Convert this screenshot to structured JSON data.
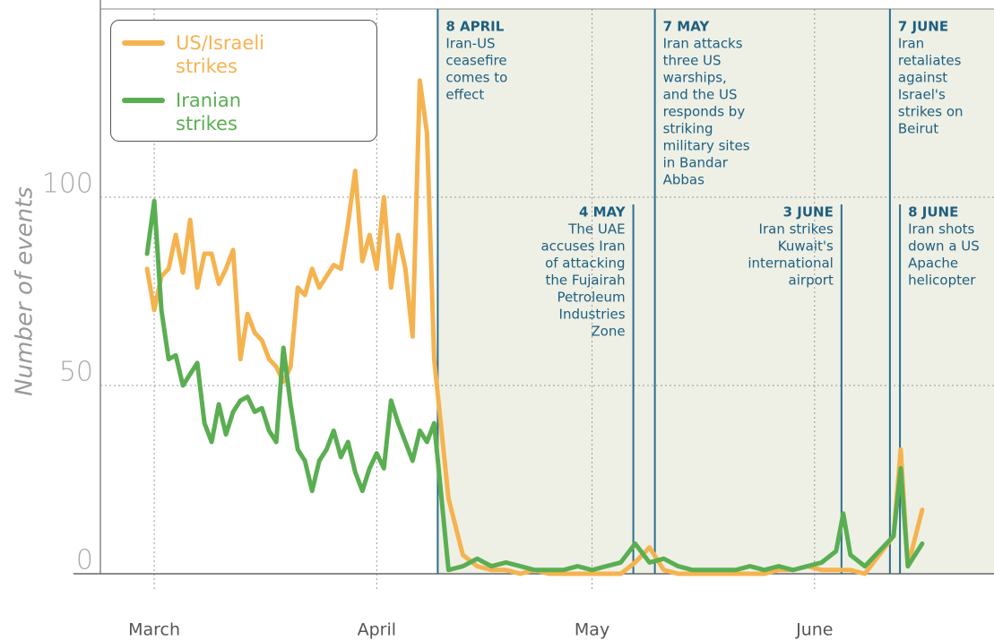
{
  "chart_data": {
    "type": "line",
    "y_label": "Number of events",
    "xlim": [
      -7.5,
      117
    ],
    "xticks": [
      {
        "value": 0,
        "label": "March"
      },
      {
        "value": 31,
        "label": "April"
      },
      {
        "value": 61,
        "label": "May"
      },
      {
        "value": 92,
        "label": "June"
      }
    ],
    "ylim": [
      0,
      150
    ],
    "yticks": [
      0,
      50,
      100
    ],
    "grid": true,
    "legend": "upper left",
    "x": [
      -1,
      0,
      1,
      2,
      3,
      4,
      5,
      6,
      7,
      8,
      9,
      10,
      11,
      12,
      13,
      14,
      15,
      16,
      17,
      18,
      19,
      20,
      21,
      22,
      23,
      24,
      25,
      26,
      27,
      28,
      29,
      30,
      31,
      32,
      33,
      34,
      35,
      36,
      37,
      38,
      39,
      41,
      43,
      45,
      47,
      49,
      51,
      53,
      55,
      57,
      59,
      61,
      63,
      65,
      67,
      69,
      71,
      73,
      75,
      77,
      79,
      81,
      83,
      85,
      87,
      89,
      91,
      93,
      95,
      96,
      97,
      99,
      101,
      103,
      104,
      105,
      107
    ],
    "series": [
      {
        "name": "US/Israeli strikes",
        "color": "#f5b350",
        "values": [
          81,
          70,
          79,
          81,
          90,
          80,
          94,
          76,
          85,
          85,
          77,
          81,
          86,
          57,
          69,
          64,
          62,
          57,
          55,
          51,
          55,
          76,
          74,
          81,
          76,
          79,
          82,
          81,
          93,
          107,
          83,
          90,
          81,
          100,
          76,
          90,
          81,
          63,
          131,
          117,
          57,
          20,
          5,
          2,
          1,
          1,
          0,
          1,
          0,
          0,
          0,
          0,
          0,
          0,
          3,
          7,
          1,
          0,
          0,
          0,
          0,
          0,
          0,
          0,
          1,
          1,
          2,
          1,
          1,
          1,
          1,
          0,
          5,
          10,
          33,
          2,
          17
        ]
      },
      {
        "name": "Iranian strikes",
        "color": "#5aae52",
        "values": [
          85,
          99,
          70,
          57,
          58,
          50,
          53,
          56,
          40,
          35,
          45,
          37,
          43,
          46,
          47,
          43,
          44,
          38,
          35,
          60,
          45,
          33,
          30,
          22,
          30,
          33,
          38,
          31,
          35,
          27,
          22,
          28,
          32,
          28,
          46,
          40,
          35,
          30,
          38,
          35,
          40,
          1,
          2,
          4,
          2,
          3,
          2,
          1,
          1,
          1,
          2,
          1,
          2,
          3,
          8,
          3,
          4,
          2,
          1,
          1,
          1,
          1,
          2,
          1,
          2,
          1,
          2,
          3,
          6,
          16,
          5,
          2,
          6,
          10,
          28,
          2,
          8
        ]
      }
    ],
    "annotations": [
      {
        "x": 39.5,
        "date": "8 APRIL",
        "text": [
          "Iran-US",
          "ceasefire",
          "comes to",
          "effect"
        ]
      },
      {
        "x": 66.75,
        "date": "4 MAY",
        "text": [
          "The UAE",
          "accuses Iran",
          "of attacking",
          "the Fujairah",
          "Petroleum",
          "Industries",
          "Zone"
        ]
      },
      {
        "x": 69.75,
        "date": "7 MAY",
        "text": [
          "Iran attacks",
          "three US",
          "warships,",
          "and the US",
          "responds by",
          "striking",
          "military sites",
          "in Bandar",
          "Abbas"
        ]
      },
      {
        "x": 95.75,
        "date": "3 JUNE",
        "text": [
          "Iran strikes",
          "Kuwait's",
          "international",
          "airport"
        ]
      },
      {
        "x": 102.5,
        "date": "7 JUNE",
        "text": [
          "Iran",
          "retaliates",
          "against",
          "Israel's",
          "strikes on",
          "Beirut"
        ]
      },
      {
        "x": 103.9,
        "date": "8 JUNE",
        "text": [
          "Iran shots",
          "down a US",
          "Apache",
          "helicopter"
        ]
      }
    ]
  }
}
